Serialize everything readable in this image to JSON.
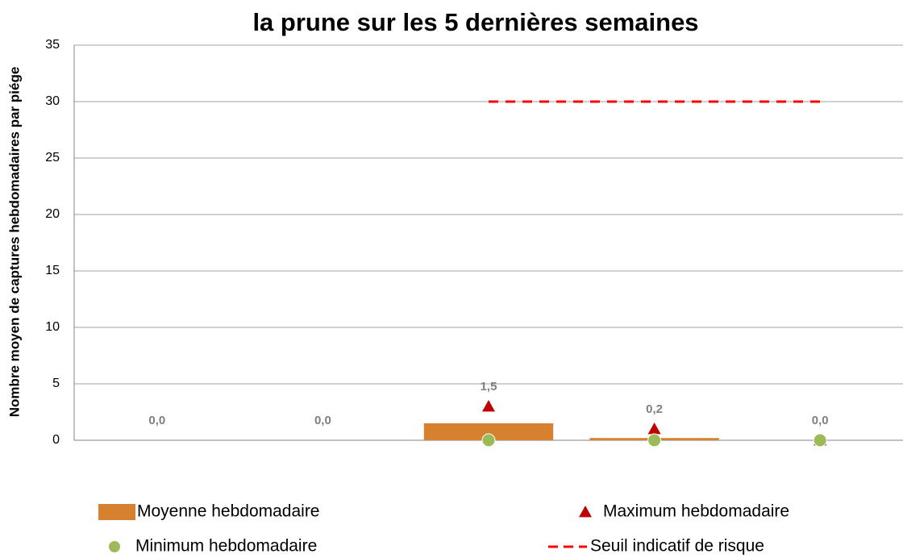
{
  "chart_data": {
    "type": "bar",
    "title": "la prune sur les 5 dernières semaines",
    "y_label": "Nombre moyen de captures hebdomadaires par piége",
    "categories": [
      null,
      null,
      null,
      null,
      null
    ],
    "series": [
      {
        "name": "Moyenne hebdomadaire",
        "type": "bar",
        "color": "#d5812f",
        "values": [
          0,
          0,
          1.5,
          0.2,
          0
        ],
        "value_labels": [
          "0,0",
          "0,0",
          "1,5",
          "0,2",
          "0,0"
        ]
      },
      {
        "name": "Maximum hebdomadaire",
        "type": "triangle",
        "color": "#c00000",
        "values": [
          null,
          null,
          3,
          1,
          0
        ]
      },
      {
        "name": "Minimum hebdomadaire",
        "type": "circle",
        "color": "#9bbb59",
        "values": [
          null,
          null,
          0,
          0,
          0
        ]
      },
      {
        "name": "Seuil indicatif de risque",
        "type": "dashed",
        "color": "#ff0000",
        "values": [
          null,
          null,
          30,
          30,
          30
        ]
      }
    ],
    "ylim": [
      0,
      35
    ],
    "yticks": [
      0,
      5,
      10,
      15,
      20,
      25,
      30,
      35
    ],
    "grid": true
  }
}
